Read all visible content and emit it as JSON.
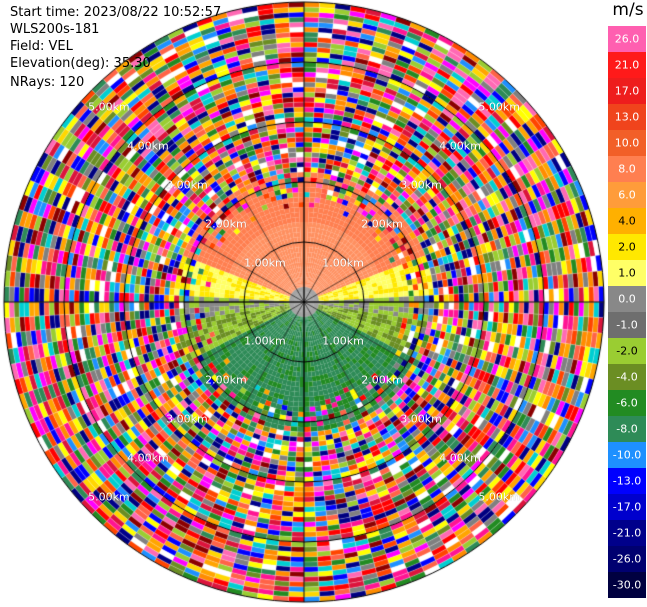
{
  "header": {
    "start_time": "Start time: 2023/08/22 10:52:57",
    "instrument": "WLS200s-181",
    "field": "Field: VEL",
    "elevation": "Elevation(deg): 35.30",
    "nrays": "NRays: 120"
  },
  "legend": {
    "unit": "m/s",
    "ticks": [
      "26.0",
      "21.0",
      "17.0",
      "13.0",
      "10.0",
      "8.0",
      "6.0",
      "4.0",
      "2.0",
      "1.0",
      "0.0",
      "-1.0",
      "-2.0",
      "-4.0",
      "-6.0",
      "-8.0",
      "-10.0",
      "-13.0",
      "-17.0",
      "-21.0",
      "-26.0",
      "-30.0"
    ],
    "colors": [
      "#ff5fb0",
      "#ff1a1a",
      "#ee1d1d",
      "#f0441c",
      "#f25f28",
      "#ff7f50",
      "#ff9c3a",
      "#ffb000",
      "#ffe800",
      "#ffff66",
      "#888888",
      "#6e6e6e",
      "#9acd32",
      "#6b8e23",
      "#228b22",
      "#2e8b57",
      "#1e90ff",
      "#0000ff",
      "#0000cd",
      "#00008b",
      "#000070",
      "#000040"
    ]
  },
  "range_rings": {
    "labels": [
      "1.00km",
      "1.00km",
      "1.00km",
      "1.00km",
      "2.00km",
      "2.00km",
      "2.00km",
      "2.00km",
      "3.00km",
      "3.00km",
      "3.00km",
      "3.00km",
      "4.00km",
      "4.00km",
      "4.00km",
      "4.00km",
      "5.00km",
      "5.00km",
      "5.00km",
      "5.00km"
    ]
  }
}
